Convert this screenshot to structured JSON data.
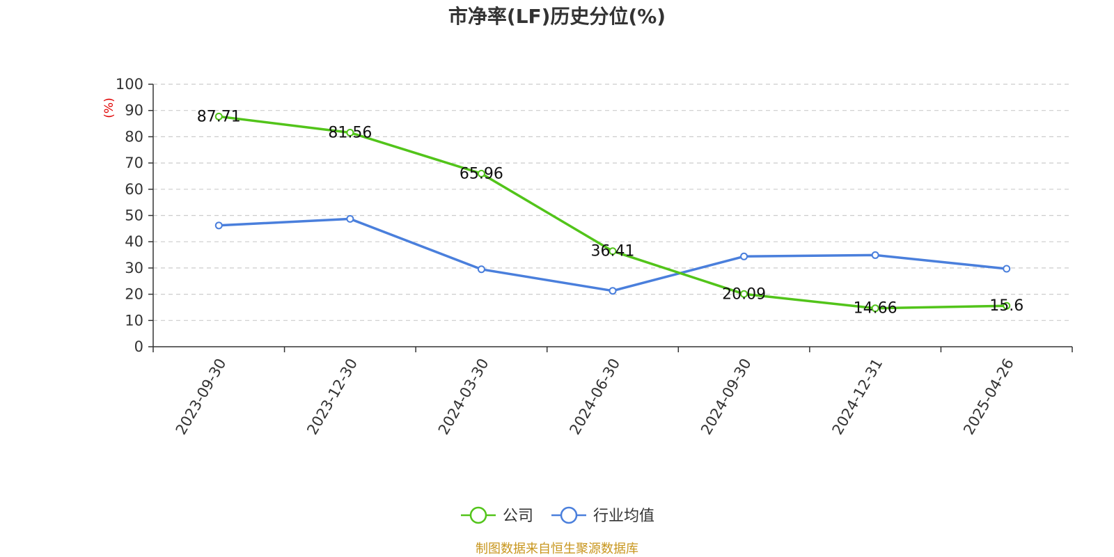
{
  "chart_data": {
    "type": "line",
    "title": "市净率(LF)历史分位(%)",
    "ylabel": "(%)",
    "categories": [
      "2023-09-30",
      "2023-12-30",
      "2024-03-30",
      "2024-06-30",
      "2024-09-30",
      "2024-12-31",
      "2025-04-26"
    ],
    "ylim": [
      0,
      100
    ],
    "yticks": [
      0,
      10,
      20,
      30,
      40,
      50,
      60,
      70,
      80,
      90,
      100
    ],
    "grid": true,
    "legend_position": "bottom-center",
    "series": [
      {
        "name": "公司",
        "color": "#52c41a",
        "values": [
          87.71,
          81.56,
          65.96,
          36.41,
          20.09,
          14.66,
          15.6
        ],
        "labels": [
          "87.71",
          "81.56",
          "65.96",
          "36.41",
          "20.09",
          "14.66",
          "15.6"
        ]
      },
      {
        "name": "行业均值",
        "color": "#4a7fdc",
        "values": [
          46.2,
          48.7,
          29.5,
          21.3,
          34.4,
          34.9,
          29.7
        ]
      }
    ],
    "source": "制图数据来自恒生聚源数据库"
  }
}
